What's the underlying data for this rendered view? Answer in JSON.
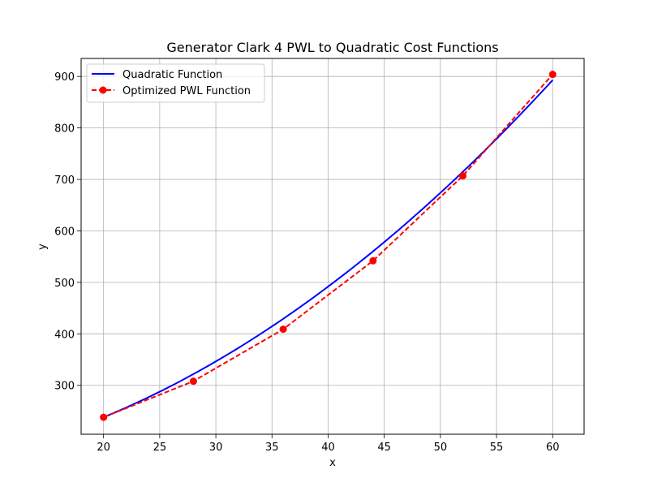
{
  "chart_data": {
    "type": "line",
    "title": "Generator Clark 4 PWL to Quadratic Cost Functions",
    "xlabel": "x",
    "ylabel": "y",
    "xlim": [
      18,
      62.8
    ],
    "ylim": [
      205,
      935
    ],
    "xticks": [
      20,
      25,
      30,
      35,
      40,
      45,
      50,
      55,
      60
    ],
    "yticks": [
      300,
      400,
      500,
      600,
      700,
      800,
      900
    ],
    "grid": true,
    "legend_position": "top-left",
    "series": [
      {
        "name": "Quadratic Function",
        "style": "solid",
        "color": "#0000ff",
        "quadratic": {
          "a": 0.1843,
          "b": 1.63,
          "c": 131.7
        },
        "x_range": [
          20,
          60
        ]
      },
      {
        "name": "Optimized PWL Function",
        "style": "dashed",
        "color": "#ff0000",
        "markers": true,
        "x": [
          20,
          28,
          36,
          44,
          52,
          60
        ],
        "y": [
          238,
          308,
          409,
          542,
          707,
          904
        ]
      }
    ]
  }
}
